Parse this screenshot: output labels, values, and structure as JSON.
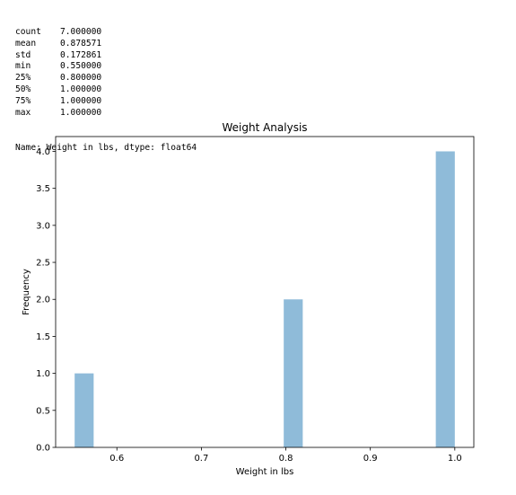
{
  "stats_output": {
    "rows": [
      {
        "key": "count",
        "value": "7.000000"
      },
      {
        "key": "mean",
        "value": "0.878571"
      },
      {
        "key": "std",
        "value": "0.172861"
      },
      {
        "key": "min",
        "value": "0.550000"
      },
      {
        "key": "25%",
        "value": "0.800000"
      },
      {
        "key": "50%",
        "value": "1.000000"
      },
      {
        "key": "75%",
        "value": "1.000000"
      },
      {
        "key": "max",
        "value": "1.000000"
      }
    ],
    "name_line": "Name: Weight in lbs, dtype: float64"
  },
  "chart_data": {
    "type": "bar",
    "title": "Weight Analysis",
    "xlabel": "Weight in lbs",
    "ylabel": "Frequency",
    "xlim": [
      0.5275,
      1.0225
    ],
    "ylim": [
      0,
      4.2
    ],
    "x_ticks": [
      0.6,
      0.7,
      0.8,
      0.9,
      1.0
    ],
    "x_tick_labels": [
      "0.6",
      "0.7",
      "0.8",
      "0.9",
      "1.0"
    ],
    "y_ticks": [
      0,
      0.5,
      1.0,
      1.5,
      2.0,
      2.5,
      3.0,
      3.5,
      4.0
    ],
    "y_tick_labels": [
      "0.0",
      "0.5",
      "1.0",
      "1.5",
      "2.0",
      "2.5",
      "3.0",
      "3.5",
      "4.0"
    ],
    "bins": [
      {
        "x0": 0.55,
        "x1": 0.5725,
        "count": 1
      },
      {
        "x0": 0.7975,
        "x1": 0.82,
        "count": 2
      },
      {
        "x0": 0.9775,
        "x1": 1.0,
        "count": 4
      }
    ],
    "bar_color": "#8fbbd9",
    "grid": false,
    "legend": false
  }
}
